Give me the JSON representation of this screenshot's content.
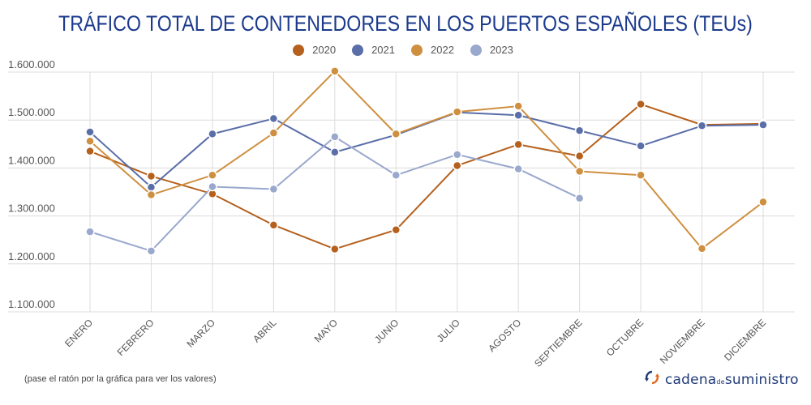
{
  "chart_data": {
    "type": "line",
    "title": "TRÁFICO TOTAL DE CONTENEDORES EN LOS PUERTOS ESPAÑOLES (TEUs)",
    "xlabel": "",
    "ylabel": "",
    "ylim": [
      1100000,
      1600000
    ],
    "yticks": [
      1100000,
      1200000,
      1300000,
      1400000,
      1500000,
      1600000
    ],
    "ytick_labels": [
      "1.100.000",
      "1.200.000",
      "1.300.000",
      "1.400.000",
      "1.500.000",
      "1.600.000"
    ],
    "grid": true,
    "legend_position": "top-center",
    "categories": [
      "ENERO",
      "FEBRERO",
      "MARZO",
      "ABRIL",
      "MAYO",
      "JUNIO",
      "JULIO",
      "AGOSTO",
      "SEPTIEMBRE",
      "OCTUBRE",
      "NOVIEMBRE",
      "DICIEMBRE"
    ],
    "series": [
      {
        "name": "2020",
        "color": "#b5601d",
        "values": [
          1435000,
          1383000,
          1346000,
          1281000,
          1231000,
          1271000,
          1405000,
          1449000,
          1425000,
          1533000,
          1490000,
          1492000
        ]
      },
      {
        "name": "2021",
        "color": "#5a6ea8",
        "values": [
          1475000,
          1360000,
          1471000,
          1503000,
          1433000,
          1469000,
          1516000,
          1510000,
          1478000,
          1446000,
          1488000,
          1490000
        ]
      },
      {
        "name": "2022",
        "color": "#cf8f40",
        "values": [
          1456000,
          1344000,
          1385000,
          1473000,
          1602000,
          1471000,
          1517000,
          1529000,
          1393000,
          1385000,
          1232000,
          1329000
        ]
      },
      {
        "name": "2023",
        "color": "#99a8cc",
        "values": [
          1267000,
          1227000,
          1361000,
          1356000,
          1465000,
          1385000,
          1428000,
          1398000,
          1337000,
          null,
          null,
          null
        ]
      }
    ]
  },
  "footer": {
    "note": "(pase el ratón por la gráfica para ver los valores)",
    "brand_part1": "cadena",
    "brand_part2": "de",
    "brand_part3": "suministro",
    "brand_icon": "circular-arrows-icon"
  }
}
